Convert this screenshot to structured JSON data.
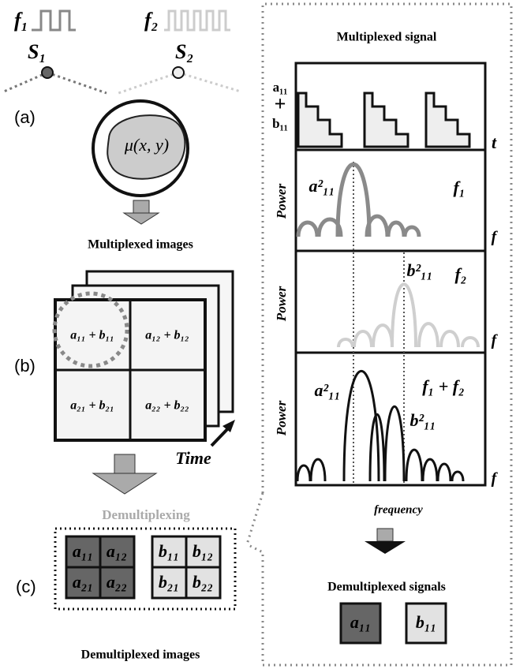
{
  "left": {
    "source_1": {
      "frequency": "f₁",
      "label": "S₁"
    },
    "source_2": {
      "frequency": "f₂",
      "label": "S₂"
    },
    "panel_labels": [
      "(a)",
      "(b)",
      "(c)"
    ],
    "object_label": "μ(x, y)",
    "multiplexed_images_title": "Multiplexed images",
    "grid_cells": [
      [
        "a₁₁ + b₁₁",
        "a₁₂ + b₁₂"
      ],
      [
        "a₂₁ + b₂₁",
        "a₂₂ + b₂₂"
      ]
    ],
    "time_label": "Time",
    "demultiplexing_label": "Demultiplexing",
    "demux_a": [
      [
        "a₁₁",
        "a₁₂"
      ],
      [
        "a₂₁",
        "a₂₂"
      ]
    ],
    "demux_b": [
      [
        "b₁₁",
        "b₁₂"
      ],
      [
        "b₂₁",
        "b₂₂"
      ]
    ],
    "demultiplexed_images_title": "Demultiplexed images"
  },
  "right": {
    "title": "Multiplexed signal",
    "time_plot": {
      "y_label": [
        "a₁₁",
        "+",
        "b₁₁"
      ],
      "x_label": "t"
    },
    "spectra": [
      {
        "y_label": "Power",
        "x_label": "f",
        "peak_labels": [
          "a²₁₁"
        ],
        "freq_label": "f₁"
      },
      {
        "y_label": "Power",
        "x_label": "f",
        "peak_labels": [
          "b²₁₁"
        ],
        "freq_label": "f₂"
      },
      {
        "y_label": "Power",
        "x_label": "f",
        "peak_labels": [
          "a²₁₁",
          "b²₁₁"
        ],
        "freq_label": "f₁ + f₂"
      }
    ],
    "x_axis_label": "frequency",
    "demultiplexed_signals_title": "Demultiplexed signals",
    "outputs": [
      "a₁₁",
      "b₁₁"
    ]
  }
}
